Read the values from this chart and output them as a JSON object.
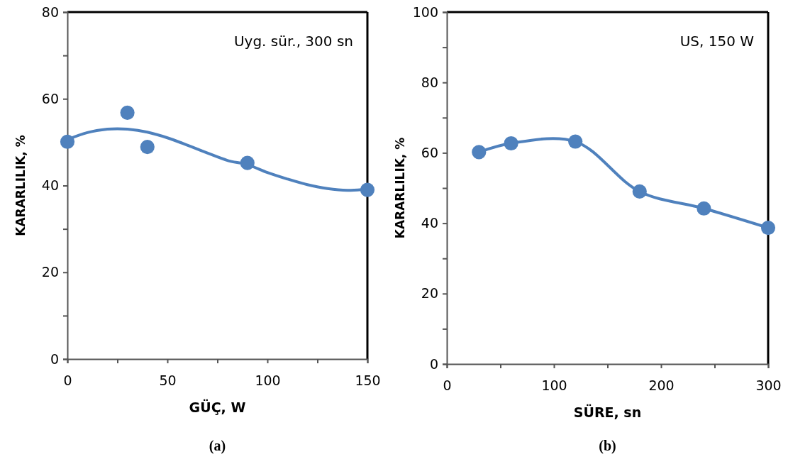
{
  "chart_data": [
    {
      "type": "scatter",
      "xlabel": "GÜÇ, W",
      "ylabel": "KARARLILIK, %",
      "annotations": [
        "Uyg. sür., 300 sn",
        "(a)"
      ],
      "marker": "circle",
      "grid": false,
      "xlim": [
        0,
        150
      ],
      "xticks": [
        0,
        {
          "value": 25,
          "label": null
        },
        50,
        {
          "value": 75,
          "label": null
        },
        100,
        {
          "value": 125,
          "label": null
        },
        150
      ],
      "ylim": [
        0,
        80
      ],
      "yticks": [
        0,
        {
          "value": 10,
          "label": null
        },
        20,
        {
          "value": 30,
          "label": null
        },
        40,
        {
          "value": 50,
          "label": null
        },
        60,
        {
          "value": 70,
          "label": null
        },
        80
      ],
      "series": [
        {
          "color": "#4f81bd",
          "x": [
            0,
            30,
            40,
            90,
            150
          ],
          "values": [
            50.1,
            56.8,
            48.9,
            45.2,
            39
          ]
        },
        {
          "type": "line",
          "marker": "none",
          "color": "#4f81bd",
          "x": [
            0,
            10,
            20,
            25,
            30,
            40,
            50,
            60,
            70,
            80,
            90,
            100,
            110,
            120,
            130,
            140,
            150
          ],
          "values": [
            50.6,
            52.2,
            53,
            53.1,
            53,
            52.3,
            51,
            49.3,
            47.5,
            45.8,
            44.8,
            43,
            41.5,
            40.2,
            39.3,
            38.9,
            39.2
          ]
        }
      ]
    },
    {
      "type": "line",
      "xlabel": "SÜRE, sn",
      "ylabel": "KARARLILIK, %",
      "annotations": [
        "US, 150 W",
        "(b)"
      ],
      "marker": "circle",
      "grid": false,
      "xlim": [
        0,
        300
      ],
      "xticks": [
        0,
        {
          "value": 50,
          "label": null
        },
        100,
        {
          "value": 150,
          "label": null
        },
        200,
        {
          "value": 250,
          "label": null
        },
        300
      ],
      "ylim": [
        0,
        100
      ],
      "yticks": [
        0,
        {
          "value": 10,
          "label": null
        },
        20,
        {
          "value": 30,
          "label": null
        },
        40,
        {
          "value": 50,
          "label": null
        },
        60,
        {
          "value": 70,
          "label": null
        },
        80,
        {
          "value": 90,
          "label": null
        },
        100
      ],
      "series": [
        {
          "color": "#4f81bd",
          "x": [
            30,
            60,
            120,
            180,
            240,
            300
          ],
          "values": [
            60.2,
            62.7,
            63.2,
            49,
            44.2,
            38.7
          ]
        }
      ]
    }
  ]
}
